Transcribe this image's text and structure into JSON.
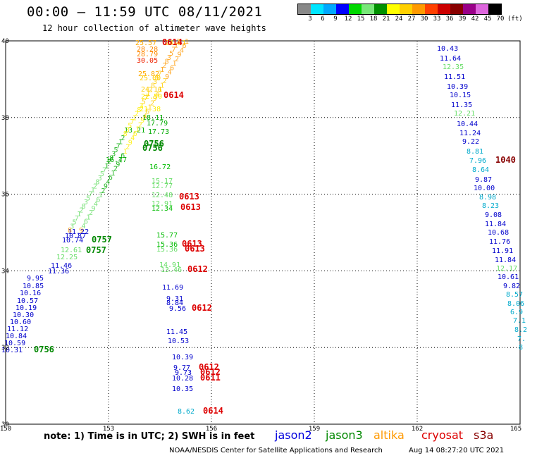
{
  "header": {
    "title": "00:00 – 11:59 UTC 08/11/2021",
    "subtitle": "12 hour collection of altimeter wave heights"
  },
  "colorbar": {
    "unit": "(ft)",
    "labels": [
      "3",
      "6",
      "9",
      "12",
      "15",
      "18",
      "21",
      "24",
      "27",
      "30",
      "33",
      "36",
      "39",
      "42",
      "45",
      "70"
    ],
    "colors": [
      "#888888",
      "#00e5ff",
      "#00a8ff",
      "#0000ff",
      "#00d800",
      "#78e878",
      "#009000",
      "#ffff00",
      "#ffd000",
      "#ff9a00",
      "#ff4000",
      "#cc0000",
      "#880000",
      "#990088",
      "#dd66dd",
      "#000000"
    ]
  },
  "axes": {
    "lon_labels": [
      "150",
      "153",
      "156",
      "159",
      "162",
      "165"
    ],
    "lat_labels": [
      "30",
      "32",
      "34",
      "36",
      "38",
      "40"
    ]
  },
  "note": "note: 1) Time is in UTC; 2) SWH is in feet",
  "missions": [
    {
      "name": "jason2",
      "color": "#0000dd"
    },
    {
      "name": "jason3",
      "color": "#008800"
    },
    {
      "name": "altika",
      "color": "#ff9900"
    },
    {
      "name": "cryosat",
      "color": "#dd0000"
    },
    {
      "name": "s3a",
      "color": "#880000"
    }
  ],
  "credit": "NOAA/NESDIS Center for Satellite Applications and Research",
  "timestamp": "Aug 14 08:27:20 UTC 2021",
  "track_a": {
    "labels": [
      {
        "t": "10.43",
        "c": "#0000cc"
      },
      {
        "t": "11.64",
        "c": "#0000cc"
      },
      {
        "t": "12.35",
        "c": "#66dd66"
      },
      {
        "t": "11.51",
        "c": "#0000cc"
      },
      {
        "t": "10.39",
        "c": "#0000cc"
      },
      {
        "t": "10.15",
        "c": "#0000cc"
      },
      {
        "t": "11.35",
        "c": "#0000cc"
      },
      {
        "t": "12.21",
        "c": "#66dd66"
      },
      {
        "t": "10.44",
        "c": "#0000cc"
      },
      {
        "t": "11.24",
        "c": "#0000cc"
      },
      {
        "t": "9.22",
        "c": "#0000cc"
      },
      {
        "t": "8.81",
        "c": "#00aacc"
      },
      {
        "t": "7.96",
        "c": "#00aacc"
      },
      {
        "t": "8.64",
        "c": "#00aacc"
      },
      {
        "t": "9.87",
        "c": "#0000cc"
      },
      {
        "t": "10.00",
        "c": "#0000cc"
      },
      {
        "t": "8.98",
        "c": "#00aacc"
      },
      {
        "t": "8.23",
        "c": "#00aacc"
      },
      {
        "t": "9.08",
        "c": "#0000cc"
      },
      {
        "t": "11.84",
        "c": "#0000cc"
      },
      {
        "t": "10.68",
        "c": "#0000cc"
      },
      {
        "t": "11.76",
        "c": "#0000cc"
      },
      {
        "t": "11.91",
        "c": "#0000cc"
      },
      {
        "t": "11.84",
        "c": "#0000cc"
      },
      {
        "t": "12.17",
        "c": "#66dd66"
      },
      {
        "t": "10.61",
        "c": "#0000cc"
      },
      {
        "t": "9.82",
        "c": "#0000cc"
      },
      {
        "t": "8.57",
        "c": "#00aacc"
      },
      {
        "t": "8.06",
        "c": "#00aacc"
      },
      {
        "t": "6.9",
        "c": "#00aacc"
      },
      {
        "t": "7.1",
        "c": "#00aacc"
      },
      {
        "t": "8.2",
        "c": "#00aacc"
      },
      {
        "t": "7.",
        "c": "#00aacc"
      },
      {
        "t": "8",
        "c": "#00aacc"
      }
    ],
    "time_label": {
      "t": "1040",
      "c": "#880000"
    }
  },
  "track_b": {
    "labels": [
      {
        "t": "15.77",
        "c": "#00bb00"
      },
      {
        "t": "15.36",
        "c": "#00bb00"
      },
      {
        "t": "15.36",
        "c": "#66dd66"
      },
      {
        "t": "14.91",
        "c": "#66dd66"
      },
      {
        "t": "13.46",
        "c": "#66dd66"
      },
      {
        "t": "11.69",
        "c": "#0000cc"
      },
      {
        "t": "9.31",
        "c": "#0000cc"
      },
      {
        "t": "8.84",
        "c": "#0000cc"
      },
      {
        "t": "9.56",
        "c": "#0000cc"
      },
      {
        "t": "11.45",
        "c": "#0000cc"
      },
      {
        "t": "10.53",
        "c": "#0000cc"
      },
      {
        "t": "10.39",
        "c": "#0000cc"
      },
      {
        "t": "9.77",
        "c": "#0000cc"
      },
      {
        "t": "9.73",
        "c": "#0000cc"
      },
      {
        "t": "10.28",
        "c": "#0000cc"
      },
      {
        "t": "10.35",
        "c": "#0000cc"
      },
      {
        "t": "8.62",
        "c": "#00aacc"
      },
      {
        "t": "16.72",
        "c": "#00bb00"
      },
      {
        "t": "15.17",
        "c": "#66dd66"
      },
      {
        "t": "12.77",
        "c": "#66dd66"
      },
      {
        "t": "12.48",
        "c": "#66dd66"
      },
      {
        "t": "12.91",
        "c": "#66dd66"
      },
      {
        "t": "12.34",
        "c": "#00bb00"
      }
    ],
    "time_labels": [
      {
        "t": "0613",
        "c": "#dd0000"
      },
      {
        "t": "0613",
        "c": "#dd0000"
      },
      {
        "t": "0613",
        "c": "#dd0000"
      },
      {
        "t": "0613",
        "c": "#dd0000"
      },
      {
        "t": "0612",
        "c": "#dd0000"
      },
      {
        "t": "0612",
        "c": "#dd0000"
      },
      {
        "t": "0612",
        "c": "#dd0000"
      },
      {
        "t": "0612",
        "c": "#dd0000"
      },
      {
        "t": "0611",
        "c": "#dd0000"
      },
      {
        "t": "0614",
        "c": "#dd0000"
      },
      {
        "t": "0614",
        "c": "#dd0000"
      }
    ]
  },
  "track_c": {
    "labels": [
      {
        "t": "11.22",
        "c": "#0000cc"
      },
      {
        "t": "10.87",
        "c": "#0000cc"
      },
      {
        "t": "10.74",
        "c": "#0000cc"
      },
      {
        "t": "12.61",
        "c": "#66dd66"
      },
      {
        "t": "12.25",
        "c": "#66dd66"
      },
      {
        "t": "11.46",
        "c": "#0000cc"
      },
      {
        "t": "11.36",
        "c": "#0000cc"
      },
      {
        "t": "9.95",
        "c": "#0000cc"
      },
      {
        "t": "10.85",
        "c": "#0000cc"
      },
      {
        "t": "10.16",
        "c": "#0000cc"
      },
      {
        "t": "10.57",
        "c": "#0000cc"
      },
      {
        "t": "10.19",
        "c": "#0000cc"
      },
      {
        "t": "10.30",
        "c": "#0000cc"
      },
      {
        "t": "10.60",
        "c": "#0000cc"
      },
      {
        "t": "11.12",
        "c": "#0000cc"
      },
      {
        "t": "10.84",
        "c": "#0000cc"
      },
      {
        "t": "10.59",
        "c": "#0000cc"
      },
      {
        "t": "10.31",
        "c": "#0000cc"
      }
    ],
    "time_labels": [
      {
        "t": "0757",
        "c": "#008800"
      },
      {
        "t": "0757",
        "c": "#008800"
      },
      {
        "t": "0756",
        "c": "#008800"
      },
      {
        "t": "0756",
        "c": "#008800"
      },
      {
        "t": "0756",
        "c": "#008800"
      }
    ]
  },
  "track_d": {
    "labels": [
      {
        "t": "25.57",
        "c": "#ffaa00"
      },
      {
        "t": "28.28",
        "c": "#ff8800"
      },
      {
        "t": "28.79",
        "c": "#ff8800"
      },
      {
        "t": "30.05",
        "c": "#ee2200"
      },
      {
        "t": "25.82",
        "c": "#ffaa00"
      },
      {
        "t": "25.00",
        "c": "#ffcc00"
      },
      {
        "t": "24.81",
        "c": "#ffcc00"
      },
      {
        "t": "24.11",
        "c": "#ffcc00"
      },
      {
        "t": "22.50",
        "c": "#ffee00"
      },
      {
        "t": "21.38",
        "c": "#ffee00"
      },
      {
        "t": "18.11",
        "c": "#00aa00"
      },
      {
        "t": "17.79",
        "c": "#00aa00"
      },
      {
        "t": "17.73",
        "c": "#00aa00"
      },
      {
        "t": "16.77",
        "c": "#00aa00"
      },
      {
        "t": "13.21",
        "c": "#00aa00"
      }
    ],
    "time_labels": [
      {
        "t": "0614",
        "c": "#dd0000"
      }
    ]
  }
}
